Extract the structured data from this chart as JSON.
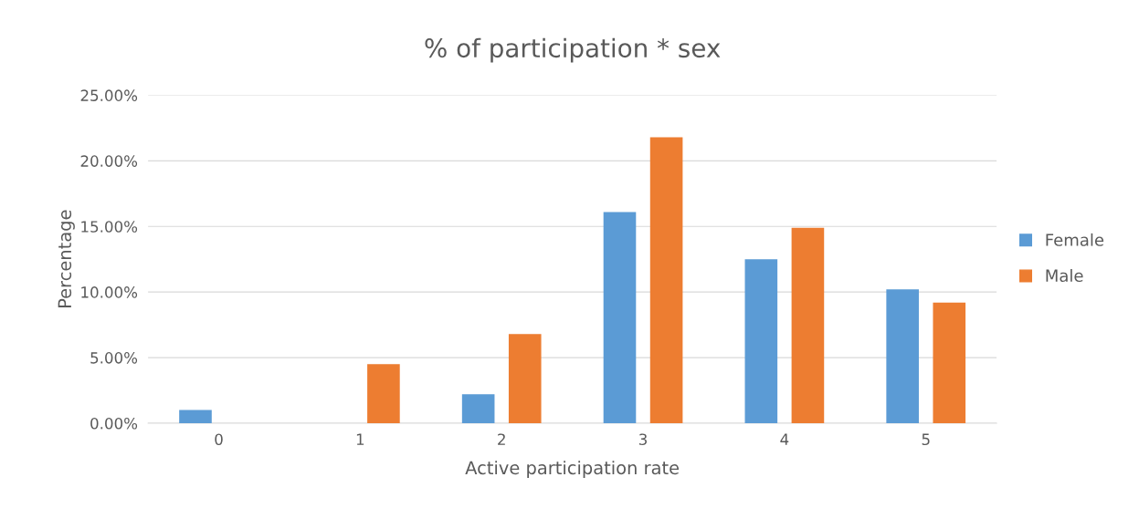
{
  "chart_data": {
    "type": "bar",
    "title": "% of participation * sex",
    "xlabel": "Active participation rate",
    "ylabel": "Percentage",
    "categories": [
      "0",
      "1",
      "2",
      "3",
      "4",
      "5"
    ],
    "series": [
      {
        "name": "Female",
        "color": "#5b9bd5",
        "values": [
          1.0,
          null,
          2.2,
          16.1,
          12.5,
          10.2
        ]
      },
      {
        "name": "Male",
        "color": "#ed7d31",
        "values": [
          null,
          4.5,
          6.8,
          21.8,
          14.9,
          9.2
        ]
      }
    ],
    "ylim": [
      0,
      25
    ],
    "yticks": [
      {
        "value": 0,
        "label": "0.00%"
      },
      {
        "value": 5,
        "label": "5.00%"
      },
      {
        "value": 10,
        "label": "10.00%"
      },
      {
        "value": 15,
        "label": "15.00%"
      },
      {
        "value": 20,
        "label": "20.00%"
      },
      {
        "value": 25,
        "label": "25.00%"
      }
    ],
    "grid": "y",
    "legend": "right"
  }
}
